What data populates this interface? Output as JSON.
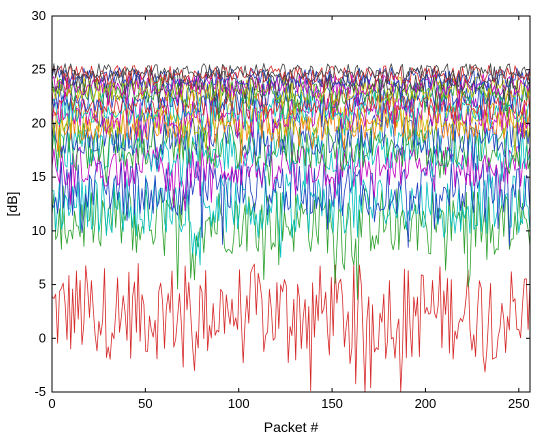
{
  "chart_data": {
    "type": "line",
    "title": "",
    "xlabel": "Packet #",
    "ylabel": "[dB]",
    "xlim": [
      0,
      256
    ],
    "ylim": [
      -5,
      30
    ],
    "xticks": [
      "0",
      "50",
      "100",
      "150",
      "200",
      "250"
    ],
    "yticks": [
      "-5",
      "0",
      "5",
      "10",
      "15",
      "20",
      "25",
      "30"
    ],
    "grid": false,
    "legend": "none",
    "packet_count": 256,
    "series": [
      {
        "color": "#d62728",
        "mean": 2.5,
        "spread": 4.5
      },
      {
        "color": "#2ca02c",
        "mean": 11.0,
        "spread": 3.2
      },
      {
        "color": "#00bfbf",
        "mean": 12.5,
        "spread": 2.8
      },
      {
        "color": "#1f3fbf",
        "mean": 14.0,
        "spread": 2.6
      },
      {
        "color": "#bf00bf",
        "mean": 16.0,
        "spread": 2.0
      },
      {
        "color": "#00bfbf",
        "mean": 17.5,
        "spread": 2.0
      },
      {
        "color": "#2ca02c",
        "mean": 18.0,
        "spread": 2.2
      },
      {
        "color": "#1f3fbf",
        "mean": 19.0,
        "spread": 2.0
      },
      {
        "color": "#ff7f0e",
        "mean": 20.0,
        "spread": 1.6
      },
      {
        "color": "#bfbf00",
        "mean": 20.5,
        "spread": 1.6
      },
      {
        "color": "#bf00bf",
        "mean": 21.0,
        "spread": 1.5
      },
      {
        "color": "#00bfbf",
        "mean": 21.5,
        "spread": 1.4
      },
      {
        "color": "#d62728",
        "mean": 22.0,
        "spread": 1.3
      },
      {
        "color": "#1f3fbf",
        "mean": 22.5,
        "spread": 1.4
      },
      {
        "color": "#2ca02c",
        "mean": 23.0,
        "spread": 1.2
      },
      {
        "color": "#bfbf00",
        "mean": 23.2,
        "spread": 1.1
      },
      {
        "color": "#bf00bf",
        "mean": 23.6,
        "spread": 1.0
      },
      {
        "color": "#404040",
        "mean": 24.0,
        "spread": 1.0
      },
      {
        "color": "#1f3fbf",
        "mean": 24.3,
        "spread": 0.9
      },
      {
        "color": "#d62728",
        "mean": 24.6,
        "spread": 0.8
      },
      {
        "color": "#404040",
        "mean": 24.9,
        "spread": 0.7
      }
    ]
  }
}
